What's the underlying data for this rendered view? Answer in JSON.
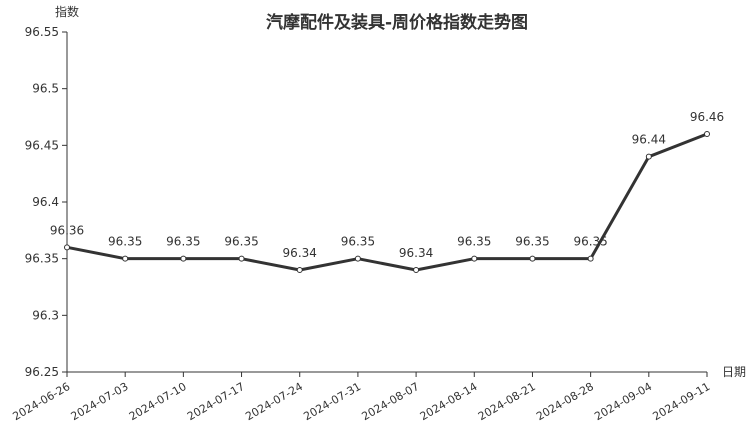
{
  "chart_data": {
    "type": "line",
    "title": "汽摩配件及装具-周价格指数走势图",
    "ylabel": "指数",
    "xlabel": "日期",
    "ylim": [
      96.25,
      96.55
    ],
    "yticks": [
      "96.25",
      "96.3",
      "96.35",
      "96.4",
      "96.45",
      "96.5",
      "96.55"
    ],
    "grid": false,
    "categories": [
      "2024-06-26",
      "2024-07-03",
      "2024-07-10",
      "2024-07-17",
      "2024-07-24",
      "2024-07-31",
      "2024-08-07",
      "2024-08-14",
      "2024-08-21",
      "2024-08-28",
      "2024-09-04",
      "2024-09-11"
    ],
    "values": [
      96.36,
      96.35,
      96.35,
      96.35,
      96.34,
      96.35,
      96.34,
      96.35,
      96.35,
      96.35,
      96.44,
      96.46
    ],
    "line_color": "#333333"
  }
}
